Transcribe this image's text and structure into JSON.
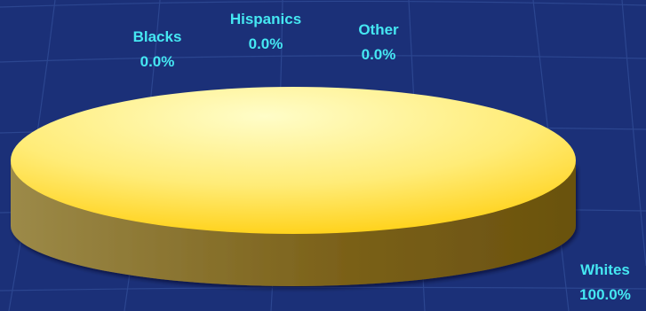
{
  "chart_data": {
    "type": "pie",
    "style": "3d",
    "title": "",
    "slices": [
      {
        "label": "Blacks",
        "value_text": "0.0%",
        "value": 0.0
      },
      {
        "label": "Hispanics",
        "value_text": "0.0%",
        "value": 0.0
      },
      {
        "label": "Other",
        "value_text": "0.0%",
        "value": 0.0
      },
      {
        "label": "Whites",
        "value_text": "100.0%",
        "value": 100.0
      }
    ],
    "colors": {
      "background": "#1b3078",
      "grid_lines": "#2c4690",
      "pie_top_light": "#fffbb8",
      "pie_top_dark": "#ffd21a",
      "pie_side_light": "#b8a35a",
      "pie_side_dark": "#6a5310",
      "label_color": "#45e7f2"
    }
  }
}
